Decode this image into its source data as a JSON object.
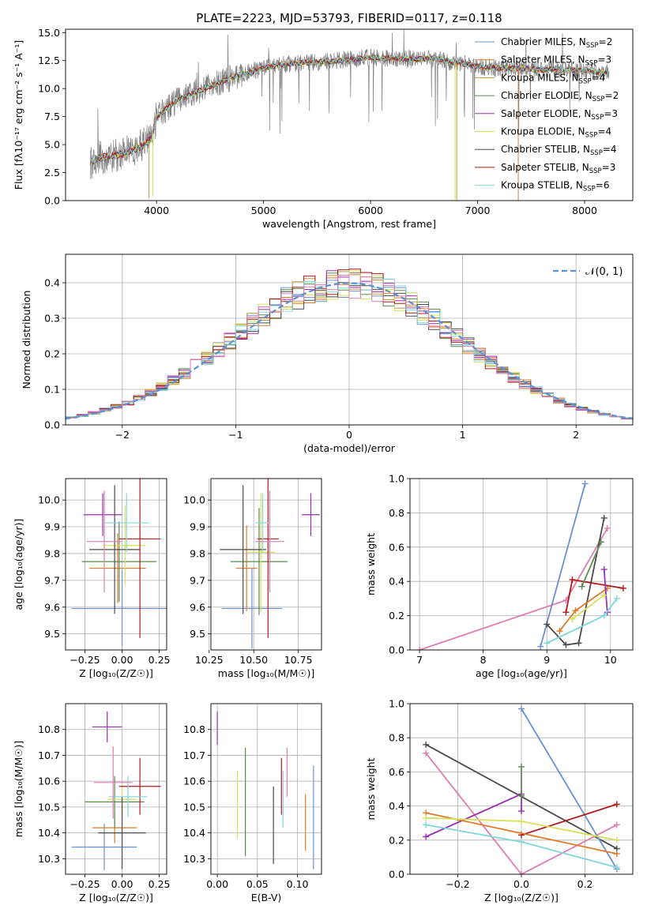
{
  "figure_title": "PLATE=2223, MJD=53793, FIBERID=0117, z=0.118",
  "colors": {
    "Chabrier MILES": "#6b8fd6",
    "Salpeter MILES": "#e07a2a",
    "Kroupa MILES": "#b89a3a",
    "Chabrier ELODIE": "#5a8a4e",
    "Salpeter ELODIE": "#9b2fb5",
    "Kroupa ELODIE": "#d5e05a",
    "Chabrier STELIB": "#4a4a4a",
    "Salpeter STELIB": "#b01818",
    "Kroupa STELIB": "#7fd6dc",
    "pink": "#e07bb0",
    "data": "#808080"
  },
  "chart_data": [
    {
      "type": "line",
      "name": "spectrum",
      "xlabel": "wavelength [Angstrom, rest frame]",
      "ylabel": "Flux [fλ10⁻¹⁷ erg cm⁻² s⁻¹ A⁻¹]",
      "xlim": [
        3150,
        8450
      ],
      "ylim": [
        0,
        15.3
      ],
      "xticks": [
        4000,
        5000,
        6000,
        7000,
        8000
      ],
      "yticks": [
        0,
        2.5,
        5.0,
        7.5,
        10.0,
        12.5,
        15.0
      ],
      "ytick_labels": [
        "0.0",
        "2.5",
        "5.0",
        "7.5",
        "10.0",
        "12.5",
        "15.0"
      ],
      "grid": false,
      "legend_position": "right",
      "continuum": {
        "x": [
          3380,
          3500,
          3700,
          3850,
          3950,
          4000,
          4200,
          4400,
          4600,
          4800,
          5000,
          5200,
          5400,
          5600,
          5800,
          6000,
          6200,
          6400,
          6600,
          6800,
          7000,
          7200,
          7400,
          7600,
          7800,
          8000,
          8230
        ],
        "y": [
          3.5,
          3.9,
          4.2,
          4.8,
          5.5,
          7.5,
          9.0,
          9.8,
          10.6,
          11.3,
          11.8,
          12.2,
          12.3,
          12.4,
          12.6,
          12.8,
          12.7,
          12.6,
          12.7,
          12.3,
          12.0,
          11.8,
          11.8,
          11.7,
          11.7,
          11.6,
          11.4
        ]
      },
      "series": [
        {
          "name": "Chabrier MILES, NSSP=2",
          "label_main": "Chabrier MILES, N",
          "label_sub": "SSP",
          "label_tail": "=2"
        },
        {
          "name": "Salpeter MILES, NSSP=3",
          "label_main": "Salpeter MILES, N",
          "label_sub": "SSP",
          "label_tail": "=3"
        },
        {
          "name": "Kroupa MILES, NSSP=4",
          "label_main": "Kroupa MILES, N",
          "label_sub": "SSP",
          "label_tail": "=4"
        },
        {
          "name": "Chabrier ELODIE, NSSP=2",
          "label_main": "Chabrier ELODIE, N",
          "label_sub": "SSP",
          "label_tail": "=2"
        },
        {
          "name": "Salpeter ELODIE, NSSP=3",
          "label_main": "Salpeter ELODIE, N",
          "label_sub": "SSP",
          "label_tail": "=3"
        },
        {
          "name": "Kroupa ELODIE, NSSP=4",
          "label_main": "Kroupa ELODIE, N",
          "label_sub": "SSP",
          "label_tail": "=4"
        },
        {
          "name": "Chabrier STELIB, NSSP=4",
          "label_main": "Chabrier STELIB, N",
          "label_sub": "SSP",
          "label_tail": "=4"
        },
        {
          "name": "Salpeter STELIB, NSSP=3",
          "label_main": "Salpeter STELIB, N",
          "label_sub": "SSP",
          "label_tail": "=3"
        },
        {
          "name": "Kroupa STELIB, NSSP=6",
          "label_main": "Kroupa STELIB, N",
          "label_sub": "SSP",
          "label_tail": "=6"
        }
      ]
    },
    {
      "type": "bar",
      "name": "residual-histogram",
      "xlabel": "(data-model)/error",
      "ylabel": "Normed distribution",
      "xlim": [
        -2.5,
        2.5
      ],
      "ylim": [
        0,
        0.48
      ],
      "xticks": [
        -2,
        -1,
        0,
        1,
        2
      ],
      "xtick_labels": [
        "−2",
        "−1",
        "0",
        "1",
        "2"
      ],
      "yticks": [
        0.0,
        0.1,
        0.2,
        0.3,
        0.4
      ],
      "ytick_labels": [
        "0.0",
        "0.1",
        "0.2",
        "0.3",
        "0.4"
      ],
      "grid": true,
      "bin_width": 0.1,
      "legend": "𝒩(0, 1)",
      "legend_position": "top-right"
    },
    {
      "type": "scatter",
      "name": "age-vs-Z",
      "xlabel": "Z [log₁₀(Z/Z☉)]",
      "ylabel": "age  [log₁₀(age/yr)]",
      "xlim": [
        -0.38,
        0.3
      ],
      "ylim": [
        9.44,
        10.08
      ],
      "xticks": [
        -0.25,
        0.0,
        0.25
      ],
      "xtick_labels": [
        "−0.25",
        "0.00",
        "0.25"
      ],
      "yticks": [
        9.5,
        9.6,
        9.7,
        9.8,
        9.9,
        10.0
      ],
      "ytick_labels": [
        "9.5",
        "9.6",
        "9.7",
        "9.8",
        "9.9",
        "10.0"
      ],
      "grid": true,
      "points": [
        {
          "color": "Chabrier MILES",
          "x": 0.0,
          "xerr": 0.34,
          "y": 9.595,
          "yerr": 0.14
        },
        {
          "color": "Salpeter MILES",
          "x": -0.03,
          "xerr": 0.19,
          "y": 9.745,
          "yerr": 0.13
        },
        {
          "color": "Chabrier ELODIE",
          "x": -0.02,
          "xerr": 0.25,
          "y": 9.77,
          "yerr": 0.15
        },
        {
          "color": "Salpeter ELODIE",
          "x": -0.13,
          "xerr": 0.13,
          "y": 9.945,
          "yerr": 0.08
        },
        {
          "color": "Kroupa ELODIE",
          "x": 0.02,
          "xerr": 0.14,
          "y": 9.83,
          "yerr": 0.15
        },
        {
          "color": "Chabrier STELIB",
          "x": -0.05,
          "xerr": 0.17,
          "y": 9.815,
          "yerr": 0.24
        },
        {
          "color": "Salpeter STELIB",
          "x": 0.12,
          "xerr": 0.14,
          "y": 9.855,
          "yerr": 0.37
        },
        {
          "color": "Kroupa STELIB",
          "x": 0.03,
          "xerr": 0.15,
          "y": 9.915,
          "yerr": 0.11
        },
        {
          "color": "pink",
          "x": -0.12,
          "xerr": 0.12,
          "y": 9.845,
          "yerr": 0.19
        }
      ]
    },
    {
      "type": "scatter",
      "name": "age-vs-mass",
      "xlabel": "mass [log₁₀(M/M☉)]",
      "ylabel": "",
      "xlim": [
        10.26,
        10.88
      ],
      "ylim": [
        9.44,
        10.08
      ],
      "xticks": [
        10.25,
        10.5,
        10.75
      ],
      "xtick_labels": [
        "10.25",
        "10.50",
        "10.75"
      ],
      "yticks": [
        9.5,
        9.6,
        9.7,
        9.8,
        9.9,
        10.0
      ],
      "ytick_labels": [
        "9.5",
        "9.6",
        "9.7",
        "9.8",
        "9.9",
        "10.0"
      ],
      "grid": true,
      "points": [
        {
          "color": "Chabrier MILES",
          "x": 10.49,
          "xerr": 0.17,
          "y": 9.595,
          "yerr": 0.15
        },
        {
          "color": "Salpeter MILES",
          "x": 10.46,
          "xerr": 0.06,
          "y": 9.745,
          "yerr": 0.16
        },
        {
          "color": "Chabrier ELODIE",
          "x": 10.53,
          "xerr": 0.16,
          "y": 9.77,
          "yerr": 0.2
        },
        {
          "color": "Salpeter ELODIE",
          "x": 10.82,
          "xerr": 0.05,
          "y": 9.945,
          "yerr": 0.08
        },
        {
          "color": "Kroupa ELODIE",
          "x": 10.54,
          "xerr": 0.08,
          "y": 9.805,
          "yerr": 0.22
        },
        {
          "color": "Chabrier STELIB",
          "x": 10.44,
          "xerr": 0.13,
          "y": 9.815,
          "yerr": 0.24
        },
        {
          "color": "Salpeter STELIB",
          "x": 10.58,
          "xerr": 0.06,
          "y": 9.855,
          "yerr": 0.37
        },
        {
          "color": "Kroupa STELIB",
          "x": 10.55,
          "xerr": 0.04,
          "y": 9.915,
          "yerr": 0.11
        },
        {
          "color": "pink",
          "x": 10.59,
          "xerr": 0.08,
          "y": 9.845,
          "yerr": 0.19
        }
      ]
    },
    {
      "type": "line",
      "name": "mass-weight-vs-age",
      "xlabel": "age  [log₁₀(age/yr)]",
      "ylabel": "mass weight",
      "xlim": [
        6.85,
        10.35
      ],
      "ylim": [
        0,
        1.0
      ],
      "xticks": [
        7,
        8,
        9,
        10
      ],
      "yticks": [
        0.0,
        0.2,
        0.4,
        0.6,
        0.8,
        1.0
      ],
      "ytick_labels": [
        "0.0",
        "0.2",
        "0.4",
        "0.6",
        "0.8",
        "1.0"
      ],
      "grid": true,
      "series": [
        {
          "color": "pink",
          "x": [
            7.0,
            9.3,
            9.95
          ],
          "y": [
            0.0,
            0.29,
            0.71
          ]
        },
        {
          "color": "Chabrier MILES",
          "x": [
            8.9,
            9.6
          ],
          "y": [
            0.02,
            0.97
          ]
        },
        {
          "color": "Chabrier STELIB",
          "x": [
            9.0,
            9.3,
            9.5,
            9.9
          ],
          "y": [
            0.15,
            0.03,
            0.04,
            0.77
          ]
        },
        {
          "color": "Salpeter MILES",
          "x": [
            9.2,
            9.45,
            9.95
          ],
          "y": [
            0.11,
            0.23,
            0.36
          ]
        },
        {
          "color": "Salpeter STELIB",
          "x": [
            9.3,
            9.4,
            10.2
          ],
          "y": [
            0.22,
            0.41,
            0.36
          ]
        },
        {
          "color": "Salpeter ELODIE",
          "x": [
            9.9,
            9.95
          ],
          "y": [
            0.47,
            0.22
          ]
        },
        {
          "color": "Kroupa ELODIE",
          "x": [
            9.4,
            9.9
          ],
          "y": [
            0.18,
            0.32
          ]
        },
        {
          "color": "Kroupa STELIB",
          "x": [
            9.0,
            9.9,
            10.1
          ],
          "y": [
            0.04,
            0.2,
            0.3
          ]
        },
        {
          "color": "Chabrier ELODIE",
          "x": [
            9.55,
            9.85
          ],
          "y": [
            0.37,
            0.63
          ]
        }
      ]
    },
    {
      "type": "scatter",
      "name": "mass-vs-Z",
      "xlabel": "Z [log₁₀(Z/Z☉)]",
      "ylabel": "mass [log₁₀(M/M☉)]",
      "xlim": [
        -0.38,
        0.3
      ],
      "ylim": [
        10.24,
        10.9
      ],
      "xticks": [
        -0.25,
        0.0,
        0.25
      ],
      "xtick_labels": [
        "−0.25",
        "0.00",
        "0.25"
      ],
      "yticks": [
        10.3,
        10.4,
        10.5,
        10.6,
        10.7,
        10.8
      ],
      "ytick_labels": [
        "10.3",
        "10.4",
        "10.5",
        "10.6",
        "10.7",
        "10.8"
      ],
      "grid": true,
      "points": [
        {
          "color": "Chabrier MILES",
          "x": -0.12,
          "xerr": 0.22,
          "y": 10.345,
          "yerr": 0.09
        },
        {
          "color": "Salpeter MILES",
          "x": -0.05,
          "xerr": 0.15,
          "y": 10.42,
          "yerr": 0.06
        },
        {
          "color": "Chabrier ELODIE",
          "x": -0.05,
          "xerr": 0.2,
          "y": 10.52,
          "yerr": 0.1
        },
        {
          "color": "Salpeter ELODIE",
          "x": -0.1,
          "xerr": 0.1,
          "y": 10.81,
          "yerr": 0.06
        },
        {
          "color": "Kroupa ELODIE",
          "x": 0.0,
          "xerr": 0.1,
          "y": 10.53,
          "yerr": 0.06
        },
        {
          "color": "Chabrier STELIB",
          "x": 0.0,
          "xerr": 0.16,
          "y": 10.4,
          "yerr": 0.14
        },
        {
          "color": "Salpeter STELIB",
          "x": 0.12,
          "xerr": 0.14,
          "y": 10.58,
          "yerr": 0.11
        },
        {
          "color": "Kroupa STELIB",
          "x": 0.04,
          "xerr": 0.13,
          "y": 10.54,
          "yerr": 0.08
        },
        {
          "color": "pink",
          "x": -0.06,
          "xerr": 0.13,
          "y": 10.595,
          "yerr": 0.14
        }
      ]
    },
    {
      "type": "scatter",
      "name": "mass-vs-EBV",
      "xlabel": "E(B-V)",
      "ylabel": "",
      "xlim": [
        -0.008,
        0.13
      ],
      "ylim": [
        10.24,
        10.9
      ],
      "xticks": [
        0.0,
        0.05,
        0.1
      ],
      "xtick_labels": [
        "0.00",
        "0.05",
        "0.10"
      ],
      "yticks": [
        10.3,
        10.4,
        10.5,
        10.6,
        10.7,
        10.8
      ],
      "ytick_labels": [
        "10.3",
        "10.4",
        "10.5",
        "10.6",
        "10.7",
        "10.8"
      ],
      "grid": true,
      "points": [
        {
          "color": "Salpeter ELODIE",
          "x": 0.0,
          "y": 10.805,
          "yerr": 0.065
        },
        {
          "color": "Kroupa ELODIE",
          "x": 0.025,
          "y": 10.51,
          "yerr": 0.13
        },
        {
          "color": "Chabrier ELODIE",
          "x": 0.035,
          "y": 10.52,
          "yerr": 0.21
        },
        {
          "color": "Chabrier STELIB",
          "x": 0.07,
          "y": 10.43,
          "yerr": 0.15
        },
        {
          "color": "Salpeter STELIB",
          "x": 0.08,
          "y": 10.58,
          "yerr": 0.11
        },
        {
          "color": "Kroupa STELIB",
          "x": 0.082,
          "y": 10.53,
          "yerr": 0.11
        },
        {
          "color": "pink",
          "x": 0.087,
          "y": 10.635,
          "yerr": 0.095
        },
        {
          "color": "Salpeter MILES",
          "x": 0.11,
          "y": 10.44,
          "yerr": 0.11
        },
        {
          "color": "Chabrier MILES",
          "x": 0.12,
          "y": 10.46,
          "yerr": 0.2
        }
      ]
    },
    {
      "type": "line",
      "name": "mass-weight-vs-Z",
      "xlabel": "Z [log₁₀(Z/Z☉)]",
      "ylabel": "mass weight",
      "xlim": [
        -0.35,
        0.35
      ],
      "ylim": [
        0,
        1.0
      ],
      "xticks": [
        -0.2,
        0.0,
        0.2
      ],
      "xtick_labels": [
        "−0.2",
        "0.0",
        "0.2"
      ],
      "yticks": [
        0.0,
        0.2,
        0.4,
        0.6,
        0.8,
        1.0
      ],
      "ytick_labels": [
        "0.0",
        "0.2",
        "0.4",
        "0.6",
        "0.8",
        "1.0"
      ],
      "grid": true,
      "series": [
        {
          "color": "Chabrier STELIB",
          "x": [
            -0.3,
            0.3
          ],
          "y": [
            0.76,
            0.15
          ]
        },
        {
          "color": "pink",
          "x": [
            -0.3,
            0.0,
            0.3
          ],
          "y": [
            0.71,
            0.0,
            0.29
          ]
        },
        {
          "color": "Chabrier MILES",
          "x": [
            0.0,
            0.3
          ],
          "y": [
            0.97,
            0.03
          ]
        },
        {
          "color": "Salpeter ELODIE",
          "x": [
            -0.3,
            0.0,
            0.0
          ],
          "y": [
            0.22,
            0.47,
            0.37
          ]
        },
        {
          "color": "Salpeter STELIB",
          "x": [
            0.0,
            0.3
          ],
          "y": [
            0.23,
            0.41
          ]
        },
        {
          "color": "Salpeter MILES",
          "x": [
            -0.3,
            0.3
          ],
          "y": [
            0.36,
            0.12
          ]
        },
        {
          "color": "Kroupa ELODIE",
          "x": [
            -0.3,
            0.0,
            0.3
          ],
          "y": [
            0.33,
            0.31,
            0.2
          ]
        },
        {
          "color": "Kroupa STELIB",
          "x": [
            -0.3,
            0.0,
            0.3
          ],
          "y": [
            0.29,
            0.19,
            0.04
          ]
        },
        {
          "color": "Chabrier ELODIE",
          "x": [
            0.0,
            0.0
          ],
          "y": [
            0.46,
            0.63
          ]
        }
      ]
    }
  ]
}
